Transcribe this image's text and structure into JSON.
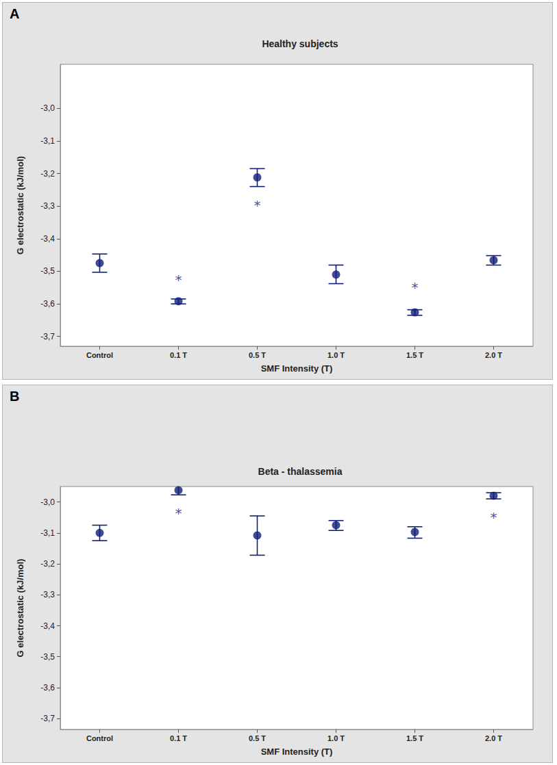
{
  "chart_data": [
    {
      "type": "scatter",
      "panel": "A",
      "title": "Healthy subjects",
      "x_label": "SMF Intensity (T)",
      "y_label": "G electrostatic (kJ/mol)",
      "categories": [
        "Control",
        "0.1 T",
        "0.5 T",
        "1.0 T",
        "1.5 T",
        "2.0 T"
      ],
      "values": [
        -3.475,
        -3.592,
        -3.212,
        -3.51,
        -3.626,
        -3.466
      ],
      "lower": [
        -3.503,
        -3.6,
        -3.24,
        -3.538,
        -3.635,
        -3.481
      ],
      "upper": [
        -3.447,
        -3.585,
        -3.185,
        -3.481,
        -3.618,
        -3.452
      ],
      "color": "#0f1f78",
      "marker": "circle",
      "grid": false,
      "ylim": [
        -3.73,
        -2.865
      ],
      "yticks": [
        {
          "value": -3.7,
          "label": "-3,7"
        },
        {
          "value": -3.6,
          "label": "-3,6"
        },
        {
          "value": -3.5,
          "label": "-3,5"
        },
        {
          "value": -3.4,
          "label": "-3,4"
        },
        {
          "value": -3.3,
          "label": "-3,3"
        },
        {
          "value": -3.2,
          "label": "-3,2"
        },
        {
          "value": -3.1,
          "label": "-3,1"
        },
        {
          "value": -3.0,
          "label": "-3,0"
        }
      ],
      "annotations": [
        {
          "category": "0.1 T",
          "y": -3.527,
          "text": "*"
        },
        {
          "category": "0.5 T",
          "y": -3.297,
          "text": "*"
        },
        {
          "category": "1.5 T",
          "y": -3.55,
          "text": "*"
        }
      ]
    },
    {
      "type": "scatter",
      "panel": "B",
      "title": "Beta - thalassemia",
      "x_label": "SMF Intensity (T)",
      "y_label": "G electrostatic (kJ/mol)",
      "categories": [
        "Control",
        "0.1 T",
        "0.5 T",
        "1.0 T",
        "1.5 T",
        "2.0 T"
      ],
      "values": [
        -3.1,
        -2.962,
        -3.108,
        -3.075,
        -3.097,
        -2.98
      ],
      "lower": [
        -3.125,
        -2.977,
        -3.172,
        -3.092,
        -3.117,
        -2.99
      ],
      "upper": [
        -3.075,
        -2.948,
        -3.045,
        -3.06,
        -3.08,
        -2.97
      ],
      "color": "#0f1f78",
      "marker": "circle",
      "grid": false,
      "ylim": [
        -3.735,
        -2.95
      ],
      "yticks": [
        {
          "value": -3.7,
          "label": "-3,7"
        },
        {
          "value": -3.6,
          "label": "-3,6"
        },
        {
          "value": -3.5,
          "label": "-3,5"
        },
        {
          "value": -3.4,
          "label": "-3,4"
        },
        {
          "value": -3.3,
          "label": "-3,3"
        },
        {
          "value": -3.2,
          "label": "-3,2"
        },
        {
          "value": -3.1,
          "label": "-3,1"
        },
        {
          "value": -3.0,
          "label": "-3,0"
        }
      ],
      "annotations": [
        {
          "category": "0.1 T",
          "y": -3.037,
          "text": "*"
        },
        {
          "category": "2.0 T",
          "y": -3.05,
          "text": "*"
        }
      ]
    }
  ]
}
